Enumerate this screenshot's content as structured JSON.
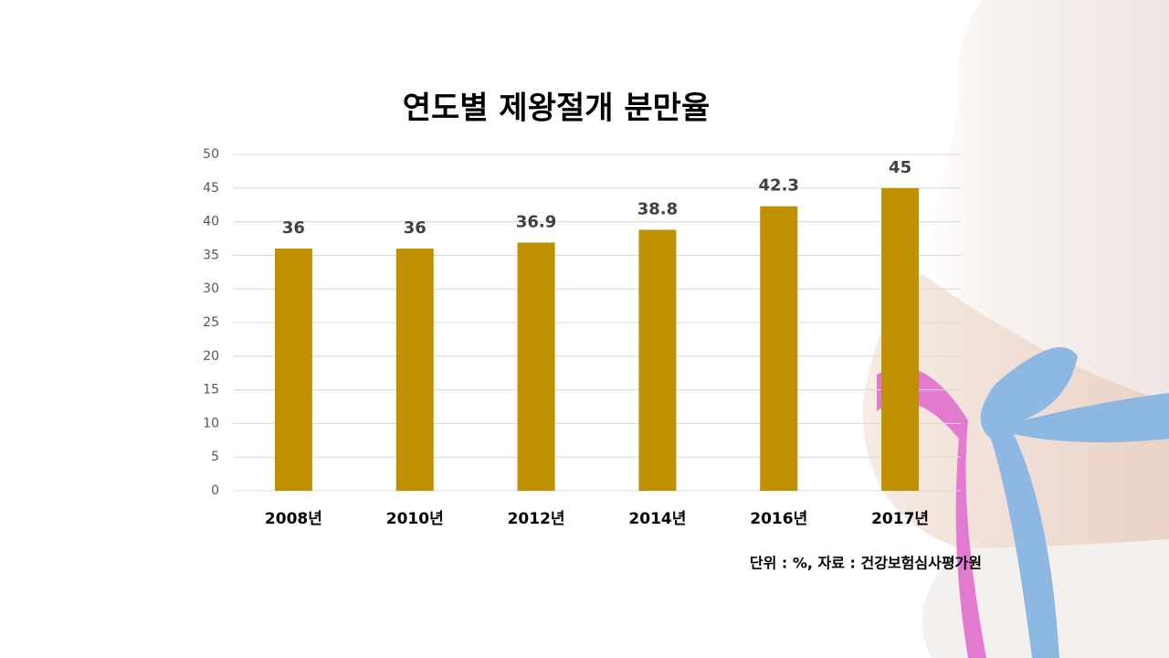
{
  "chart_data": {
    "type": "bar",
    "title": "연도별 제왕절개 분만율",
    "categories": [
      "2008년",
      "2010년",
      "2012년",
      "2014년",
      "2016년",
      "2017년"
    ],
    "values": [
      36,
      36,
      36.9,
      38.8,
      42.3,
      45
    ],
    "color": "#bf9000",
    "ylim": [
      0,
      50
    ],
    "yticks": [
      0,
      5,
      10,
      15,
      20,
      25,
      30,
      35,
      40,
      45,
      50
    ],
    "grid": true,
    "note": "단위 : %, 자료 : 건강보험심사평가원"
  }
}
